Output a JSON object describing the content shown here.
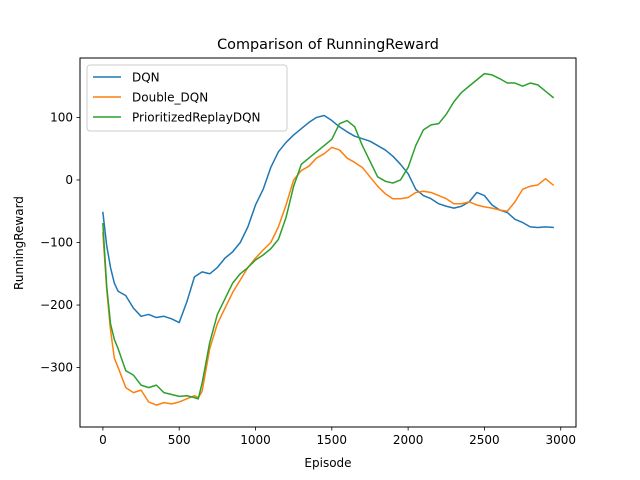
{
  "chart_data": {
    "type": "line",
    "title": "Comparison of RunningReward",
    "xlabel": "Episode",
    "ylabel": "RunningReward",
    "xlim": [
      -150,
      3100
    ],
    "ylim": [
      -395,
      195
    ],
    "xticks": [
      0,
      500,
      1000,
      1500,
      2000,
      2500,
      3000
    ],
    "xtick_labels": [
      "0",
      "500",
      "1000",
      "1500",
      "2000",
      "2500",
      "3000"
    ],
    "yticks": [
      -300,
      -200,
      -100,
      0,
      100
    ],
    "ytick_labels": [
      "−300",
      "−200",
      "−100",
      "0",
      "100"
    ],
    "grid": false,
    "legend_position": "top-left",
    "series": [
      {
        "name": "DQN",
        "color": "#1f77b4",
        "x": [
          0,
          25,
          50,
          75,
          100,
          150,
          200,
          250,
          300,
          350,
          400,
          450,
          500,
          550,
          600,
          650,
          700,
          750,
          800,
          850,
          900,
          950,
          1000,
          1050,
          1100,
          1150,
          1200,
          1250,
          1300,
          1350,
          1400,
          1450,
          1500,
          1550,
          1600,
          1650,
          1700,
          1750,
          1800,
          1850,
          1900,
          1950,
          2000,
          2050,
          2100,
          2150,
          2200,
          2250,
          2300,
          2350,
          2400,
          2450,
          2500,
          2550,
          2600,
          2650,
          2700,
          2750,
          2800,
          2850,
          2900,
          2950
        ],
        "y": [
          -52,
          -105,
          -140,
          -165,
          -178,
          -185,
          -205,
          -218,
          -215,
          -220,
          -218,
          -222,
          -228,
          -195,
          -155,
          -147,
          -150,
          -140,
          -125,
          -115,
          -100,
          -75,
          -40,
          -15,
          20,
          45,
          60,
          72,
          82,
          92,
          100,
          103,
          95,
          85,
          77,
          70,
          66,
          62,
          55,
          48,
          38,
          25,
          10,
          -15,
          -25,
          -30,
          -38,
          -42,
          -45,
          -42,
          -35,
          -20,
          -25,
          -40,
          -48,
          -52,
          -63,
          -68,
          -75,
          -76,
          -75,
          -76
        ]
      },
      {
        "name": "Double_DQN",
        "color": "#ff7f0e",
        "x": [
          0,
          25,
          50,
          75,
          100,
          150,
          200,
          250,
          300,
          350,
          400,
          450,
          500,
          550,
          600,
          625,
          650,
          700,
          750,
          800,
          850,
          900,
          950,
          1000,
          1050,
          1100,
          1150,
          1200,
          1250,
          1300,
          1350,
          1400,
          1450,
          1500,
          1550,
          1600,
          1650,
          1700,
          1750,
          1800,
          1850,
          1900,
          1950,
          2000,
          2050,
          2100,
          2150,
          2200,
          2250,
          2300,
          2350,
          2400,
          2450,
          2500,
          2550,
          2600,
          2650,
          2700,
          2750,
          2800,
          2850,
          2900,
          2950
        ],
        "y": [
          -85,
          -175,
          -240,
          -285,
          -300,
          -332,
          -340,
          -336,
          -355,
          -360,
          -356,
          -358,
          -355,
          -350,
          -345,
          -348,
          -338,
          -270,
          -230,
          -205,
          -180,
          -160,
          -140,
          -125,
          -112,
          -100,
          -75,
          -40,
          0,
          15,
          22,
          35,
          42,
          52,
          48,
          35,
          28,
          20,
          5,
          -10,
          -22,
          -30,
          -30,
          -28,
          -20,
          -18,
          -20,
          -25,
          -30,
          -38,
          -38,
          -35,
          -40,
          -43,
          -45,
          -48,
          -50,
          -35,
          -15,
          -10,
          -8,
          2,
          -8
        ]
      },
      {
        "name": "PrioritizedReplayDQN",
        "color": "#2ca02c",
        "x": [
          0,
          25,
          50,
          75,
          100,
          150,
          200,
          250,
          300,
          350,
          400,
          450,
          500,
          550,
          600,
          625,
          650,
          700,
          750,
          800,
          850,
          900,
          950,
          1000,
          1050,
          1100,
          1150,
          1200,
          1250,
          1300,
          1350,
          1400,
          1450,
          1500,
          1550,
          1600,
          1650,
          1700,
          1750,
          1800,
          1850,
          1900,
          1950,
          2000,
          2050,
          2100,
          2150,
          2200,
          2250,
          2300,
          2350,
          2400,
          2450,
          2500,
          2550,
          2600,
          2650,
          2700,
          2750,
          2800,
          2850,
          2900,
          2950
        ],
        "y": [
          -70,
          -170,
          -230,
          -255,
          -270,
          -305,
          -312,
          -328,
          -332,
          -328,
          -340,
          -343,
          -346,
          -345,
          -348,
          -350,
          -325,
          -260,
          -215,
          -190,
          -165,
          -150,
          -140,
          -128,
          -120,
          -110,
          -95,
          -60,
          -10,
          25,
          35,
          45,
          55,
          65,
          90,
          95,
          85,
          55,
          30,
          5,
          -2,
          -5,
          0,
          20,
          55,
          80,
          88,
          90,
          105,
          125,
          140,
          150,
          160,
          170,
          168,
          162,
          155,
          155,
          150,
          155,
          152,
          142,
          132
        ]
      }
    ]
  }
}
